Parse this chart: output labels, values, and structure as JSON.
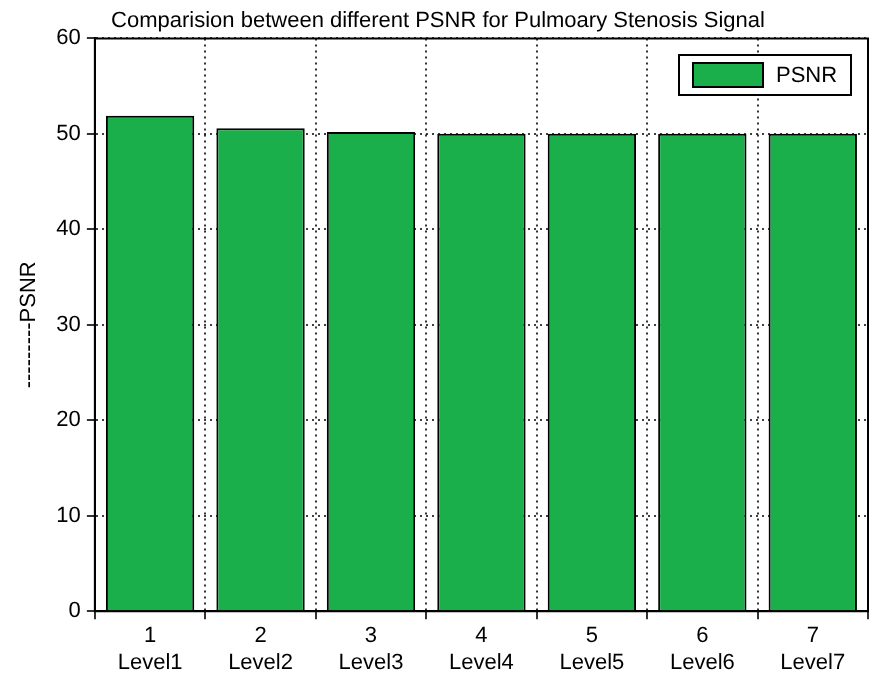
{
  "chart_data": {
    "type": "bar",
    "title": "Comparision between different PSNR for Pulmoary Stenosis Signal",
    "ylabel": "---------PSNR",
    "categories": [
      "1\nLevel1",
      "2\nLevel2",
      "3\nLevel3",
      "4\nLevel4",
      "5\nLevel5",
      "6\nLevel6",
      "7\nLevel7"
    ],
    "series": [
      {
        "name": "PSNR",
        "color": "#1aaf4b",
        "values": [
          51.9,
          50.6,
          50.2,
          50,
          50,
          50,
          50
        ]
      }
    ],
    "ylim": [
      0,
      60
    ],
    "yticks": [
      0,
      10,
      20,
      30,
      40,
      50,
      60
    ],
    "grid": true,
    "legend": "top right"
  }
}
